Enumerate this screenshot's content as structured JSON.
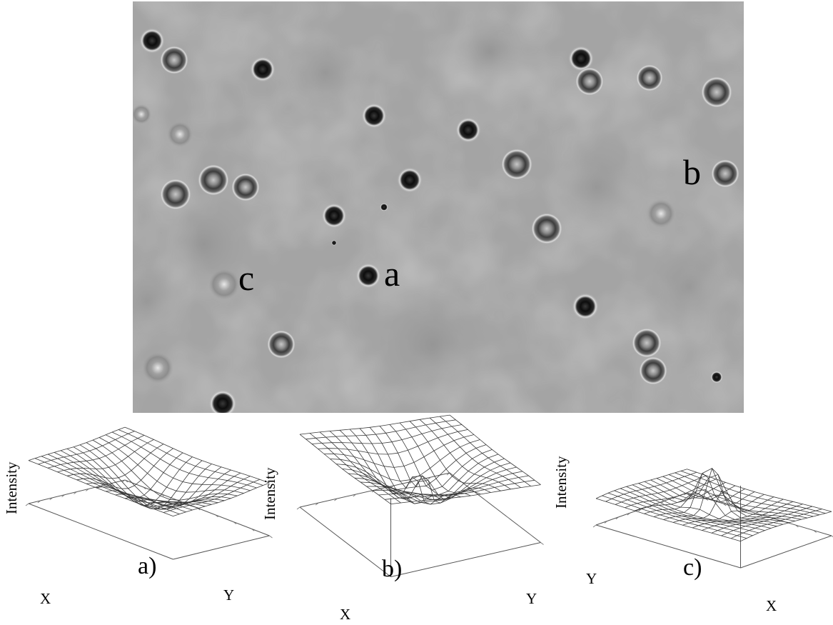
{
  "micrograph": {
    "labels": [
      "b",
      "c",
      "a"
    ]
  },
  "panels": [
    {
      "label": "a)",
      "x_axis": "X",
      "y_axis": "Y",
      "z_axis": "Intensity"
    },
    {
      "label": "b)",
      "x_axis": "X",
      "y_axis": "Y",
      "z_axis": "Intensity"
    },
    {
      "label": "c)",
      "x_axis": "X",
      "y_axis": "Y",
      "z_axis": "Intensity"
    }
  ],
  "colors": {
    "background": "#a3a3a3",
    "particle_core": "#141414",
    "particle_halo": "#e6e6e6",
    "mesh": "#444444"
  }
}
